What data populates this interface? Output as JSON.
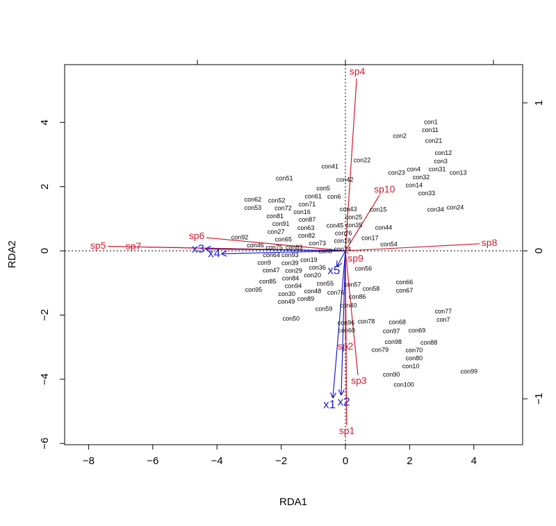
{
  "chart_data": {
    "type": "scatter",
    "title": "",
    "xlabel": "RDA1",
    "ylabel": "RDA2",
    "xlim": [
      -8.6,
      5.6
    ],
    "ylim": [
      -6.1,
      5.8
    ],
    "xticks": [
      -8,
      -6,
      -4,
      -2,
      0,
      2,
      4
    ],
    "yticks": [
      -6,
      -4,
      -2,
      0,
      2,
      4
    ],
    "top_ticks": [
      -1,
      0,
      1
    ],
    "right_ticks": [
      -1,
      0,
      1
    ],
    "secondary_scale": 4.61,
    "grid": false,
    "colors": {
      "sites": "#000000",
      "species": "#d0192b",
      "env": "#1a1ad6"
    },
    "sites": [
      {
        "label": "con1",
        "x": 2.66,
        "y": 3.92
      },
      {
        "label": "con11",
        "x": 2.64,
        "y": 3.83
      },
      {
        "label": "con2",
        "x": 1.69,
        "y": 3.57
      },
      {
        "label": "con21",
        "x": 2.75,
        "y": 3.42
      },
      {
        "label": "con12",
        "x": 3.05,
        "y": 2.94
      },
      {
        "label": "con3",
        "x": 2.97,
        "y": 2.88
      },
      {
        "label": "con22",
        "x": 0.52,
        "y": 2.81
      },
      {
        "label": "con41",
        "x": -0.48,
        "y": 2.62
      },
      {
        "label": "con23",
        "x": 1.6,
        "y": 2.42
      },
      {
        "label": "con4",
        "x": 2.12,
        "y": 2.47
      },
      {
        "label": "con31",
        "x": 2.86,
        "y": 2.45
      },
      {
        "label": "con13",
        "x": 3.51,
        "y": 2.42
      },
      {
        "label": "con32",
        "x": 2.36,
        "y": 2.32
      },
      {
        "label": "con51",
        "x": -1.9,
        "y": 2.25
      },
      {
        "label": "con42",
        "x": -0.02,
        "y": 2.21
      },
      {
        "label": "con14",
        "x": 2.14,
        "y": 1.99
      },
      {
        "label": "con33",
        "x": 2.53,
        "y": 1.93
      },
      {
        "label": "con5",
        "x": -0.69,
        "y": 1.93
      },
      {
        "label": "con6",
        "x": -0.35,
        "y": 1.67
      },
      {
        "label": "con61",
        "x": -1.0,
        "y": 1.62
      },
      {
        "label": "con62",
        "x": -2.88,
        "y": 1.49
      },
      {
        "label": "con53",
        "x": -2.88,
        "y": 1.43
      },
      {
        "label": "con52",
        "x": -2.14,
        "y": 1.49
      },
      {
        "label": "con71",
        "x": -1.19,
        "y": 1.36
      },
      {
        "label": "con34",
        "x": 2.81,
        "y": 1.28
      },
      {
        "label": "con24",
        "x": 3.42,
        "y": 1.34
      },
      {
        "label": "con15",
        "x": 1.02,
        "y": 1.28
      },
      {
        "label": "con72",
        "x": -1.93,
        "y": 1.15
      },
      {
        "label": "con16",
        "x": -1.36,
        "y": 1.15
      },
      {
        "label": "con87",
        "x": -1.19,
        "y": 1.08
      },
      {
        "label": "con43",
        "x": 0.09,
        "y": 1.19
      },
      {
        "label": "con25",
        "x": 0.26,
        "y": 0.93
      },
      {
        "label": "con35",
        "x": 0.22,
        "y": 0.89
      },
      {
        "label": "con81",
        "x": -2.19,
        "y": 0.89
      },
      {
        "label": "con26",
        "x": -0.06,
        "y": 0.71
      },
      {
        "label": "con45",
        "x": -0.28,
        "y": 0.65
      },
      {
        "label": "con44",
        "x": 1.19,
        "y": 0.71
      },
      {
        "label": "con91",
        "x": -2.01,
        "y": 0.56
      },
      {
        "label": "con63",
        "x": -1.23,
        "y": 0.58
      },
      {
        "label": "con82",
        "x": -1.21,
        "y": 0.41
      },
      {
        "label": "con17",
        "x": 0.78,
        "y": 0.39
      },
      {
        "label": "con75",
        "x": -2.27,
        "y": 0.45
      },
      {
        "label": "con27",
        "x": -2.16,
        "y": 0.41
      },
      {
        "label": "con65",
        "x": -1.93,
        "y": 0.28
      },
      {
        "label": "con18",
        "x": -0.11,
        "y": 0.32
      },
      {
        "label": "con73",
        "x": -0.87,
        "y": 0.28
      },
      {
        "label": "con8",
        "x": -0.61,
        "y": 0.17
      },
      {
        "label": "con92",
        "x": -3.29,
        "y": 0.28
      },
      {
        "label": "con54",
        "x": 1.34,
        "y": 0.19
      },
      {
        "label": "con46",
        "x": -2.75,
        "y": 0.09
      },
      {
        "label": "con9",
        "x": -2.53,
        "y": 0.06
      },
      {
        "label": "con74",
        "x": -0.09,
        "y": -0.15
      },
      {
        "label": "con56",
        "x": 0.56,
        "y": -0.37
      },
      {
        "label": "con83",
        "x": -1.6,
        "y": -0.15
      },
      {
        "label": "con64",
        "x": -2.3,
        "y": -0.06
      },
      {
        "label": "con93",
        "x": -1.75,
        "y": -0.28
      },
      {
        "label": "con47",
        "x": -2.27,
        "y": -0.45
      },
      {
        "label": "con84",
        "x": -1.71,
        "y": -0.45
      },
      {
        "label": "con39",
        "x": -1.67,
        "y": -0.37
      },
      {
        "label": "con19",
        "x": -1.21,
        "y": -0.45
      },
      {
        "label": "con29",
        "x": -1.6,
        "y": -0.63
      },
      {
        "label": "con36",
        "x": -0.84,
        "y": -0.71
      },
      {
        "label": "con55",
        "x": -0.63,
        "y": -0.71
      },
      {
        "label": "con85",
        "x": -2.42,
        "y": -1.04
      },
      {
        "label": "con95",
        "x": -2.86,
        "y": -1.15
      },
      {
        "label": "con20",
        "x": -1.06,
        "y": -1.06
      },
      {
        "label": "con94",
        "x": -1.6,
        "y": -1.17
      },
      {
        "label": "con89",
        "x": -1.26,
        "y": -1.13
      },
      {
        "label": "con48",
        "x": -1.02,
        "y": -1.19
      },
      {
        "label": "con30",
        "x": -1.8,
        "y": -1.36
      },
      {
        "label": "con49",
        "x": -1.84,
        "y": -1.52
      },
      {
        "label": "con57",
        "x": 0.22,
        "y": -1.08
      },
      {
        "label": "con58",
        "x": 0.8,
        "y": -1.23
      },
      {
        "label": "con76",
        "x": -0.3,
        "y": -1.3
      },
      {
        "label": "con86",
        "x": 0.37,
        "y": -1.41
      },
      {
        "label": "con66",
        "x": 1.84,
        "y": -1.0
      },
      {
        "label": "con67",
        "x": 1.84,
        "y": -1.23
      },
      {
        "label": "con40",
        "x": 0.09,
        "y": -1.71
      },
      {
        "label": "con59",
        "x": -0.67,
        "y": -1.82
      },
      {
        "label": "con77",
        "x": 3.05,
        "y": -1.99
      },
      {
        "label": "con7",
        "x": 3.05,
        "y": -2.06
      },
      {
        "label": "con50",
        "x": -1.69,
        "y": -2.12
      },
      {
        "label": "con96",
        "x": 0.02,
        "y": -2.25
      },
      {
        "label": "con78",
        "x": 0.65,
        "y": -2.21
      },
      {
        "label": "con68",
        "x": 1.62,
        "y": -2.23
      },
      {
        "label": "con60",
        "x": 0.04,
        "y": -2.49
      },
      {
        "label": "con97",
        "x": 1.43,
        "y": -2.51
      },
      {
        "label": "con69",
        "x": 2.23,
        "y": -2.49
      },
      {
        "label": "con98",
        "x": 1.49,
        "y": -2.88
      },
      {
        "label": "con88",
        "x": 2.6,
        "y": -2.9
      },
      {
        "label": "con79",
        "x": 1.08,
        "y": -3.07
      },
      {
        "label": "con70",
        "x": 2.14,
        "y": -3.29
      },
      {
        "label": "con10",
        "x": 2.04,
        "y": -3.35
      },
      {
        "label": "con80",
        "x": 2.14,
        "y": -3.4
      },
      {
        "label": "con90",
        "x": 1.43,
        "y": -3.87
      },
      {
        "label": "con99",
        "x": 3.85,
        "y": -3.77
      },
      {
        "label": "con100",
        "x": 1.82,
        "y": -4.18
      }
    ],
    "species": [
      {
        "label": "sp1",
        "x": 0.04,
        "y": -5.43
      },
      {
        "label": "sp2",
        "x": 0.0,
        "y": -2.8
      },
      {
        "label": "sp3",
        "x": 0.39,
        "y": -3.87
      },
      {
        "label": "sp4",
        "x": 0.35,
        "y": 5.37
      },
      {
        "label": "sp5",
        "x": -7.4,
        "y": 0.14
      },
      {
        "label": "sp6",
        "x": -4.33,
        "y": 0.41
      },
      {
        "label": "sp7",
        "x": -6.3,
        "y": 0.12
      },
      {
        "label": "sp8",
        "x": 4.18,
        "y": 0.22
      },
      {
        "label": "sp9",
        "x": 0.1,
        "y": -0.1
      },
      {
        "label": "sp10",
        "x": 1.06,
        "y": 1.73
      }
    ],
    "env": [
      {
        "label": "x1",
        "x": -0.39,
        "y": -4.57
      },
      {
        "label": "x2",
        "x": -0.13,
        "y": -4.48
      },
      {
        "label": "x3",
        "x": -4.35,
        "y": 0.06
      },
      {
        "label": "x4",
        "x": -3.85,
        "y": -0.09
      },
      {
        "label": "x5",
        "x": -0.26,
        "y": -0.48
      }
    ]
  }
}
